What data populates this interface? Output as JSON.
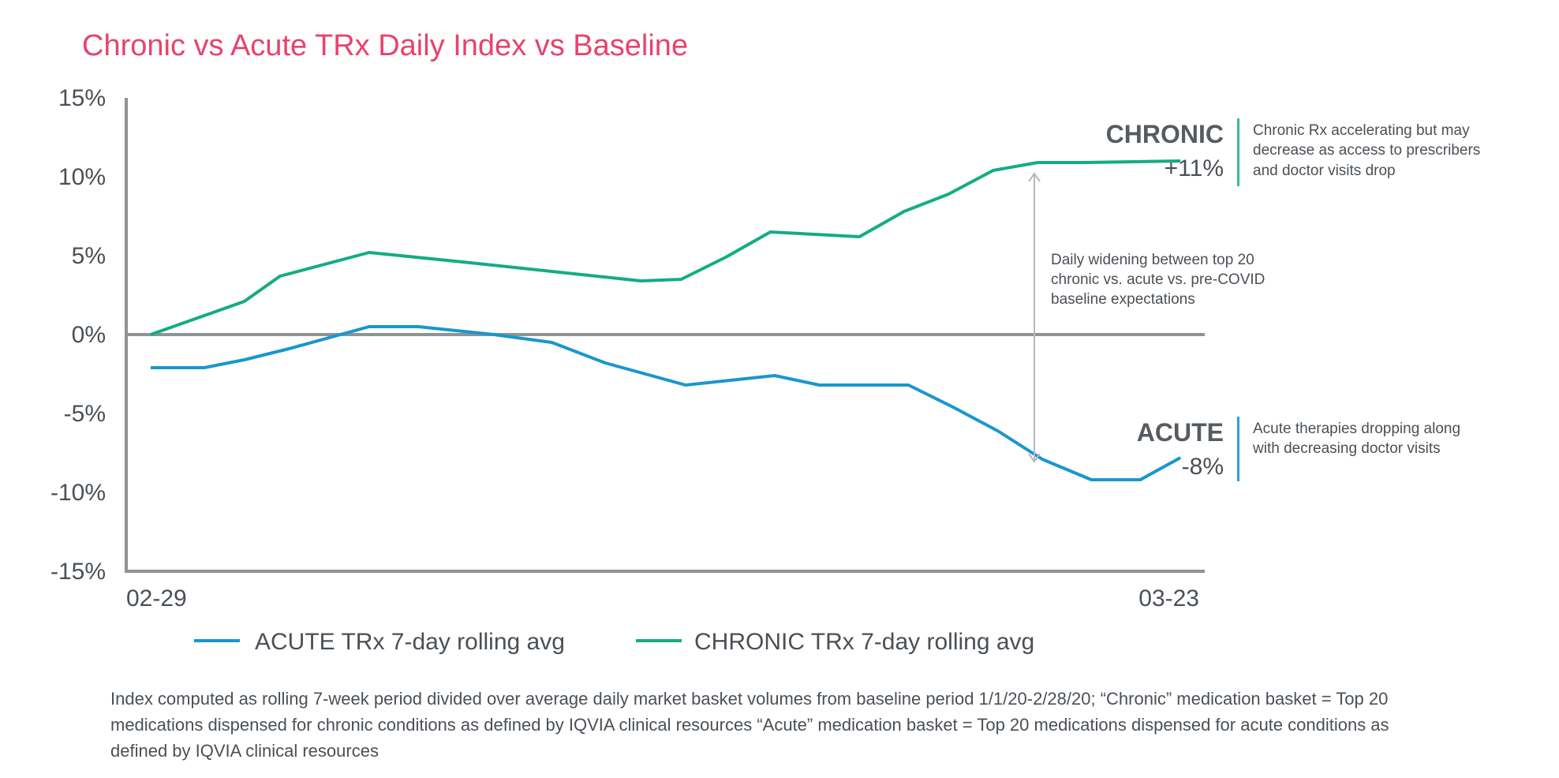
{
  "chart_data": {
    "type": "line",
    "title": "Chronic vs Acute TRx Daily Index vs Baseline",
    "xlabel": "",
    "ylabel": "",
    "x_tick_labels": [
      "02-29",
      "03-23"
    ],
    "ylim": [
      -15,
      15
    ],
    "y_ticks": [
      15,
      10,
      5,
      0,
      -5,
      -10,
      -15
    ],
    "y_tick_labels": [
      "15%",
      "10%",
      "5%",
      "0%",
      "-5%",
      "-10%",
      "-15%"
    ],
    "baseline": 0,
    "legend_position": "bottom",
    "series": [
      {
        "name": "ACUTE TRx 7-day rolling avg",
        "color": "#1a96cf",
        "x": [
          0,
          1.2,
          2.1,
          3.1,
          4.9,
          6.0,
          7.7,
          9.0,
          10.2,
          12.0,
          13.0,
          14.0,
          15.0,
          16.0,
          17.0,
          18.0,
          19.0,
          20.0,
          21.1,
          22.2,
          23.1
        ],
        "values": [
          -2.1,
          -2.1,
          -1.6,
          -0.9,
          0.5,
          0.5,
          0.0,
          -0.5,
          -1.8,
          -3.2,
          -2.9,
          -2.6,
          -3.2,
          -3.2,
          -3.2,
          -4.6,
          -6.1,
          -7.9,
          -9.2,
          -9.2,
          -7.8
        ]
      },
      {
        "name": "CHRONIC TRx 7-day rolling avg",
        "color": "#14ac84",
        "x": [
          0,
          1.0,
          2.1,
          2.9,
          4.9,
          7.0,
          9.0,
          11.0,
          11.9,
          12.9,
          13.9,
          15.9,
          16.9,
          17.9,
          18.9,
          19.9,
          20.9,
          23.1
        ],
        "values": [
          0,
          1.0,
          2.1,
          3.7,
          5.2,
          4.6,
          4.0,
          3.4,
          3.5,
          4.9,
          6.5,
          6.2,
          7.8,
          8.9,
          10.4,
          10.9,
          10.9,
          11.0
        ]
      }
    ],
    "annotations": {
      "chronic_label": "CHRONIC",
      "chronic_value": "+11%",
      "chronic_note": [
        "Chronic Rx accelerating but may",
        "decrease as access to prescribers",
        "and doctor visits drop"
      ],
      "acute_label": "ACUTE",
      "acute_value": "-8%",
      "acute_note": [
        "Acute therapies dropping along",
        "with decreasing doctor visits"
      ],
      "widening_note": [
        "Daily widening between top 20",
        "chronic vs. acute vs. pre-COVID",
        "baseline expectations"
      ]
    },
    "footnote": [
      "Index computed as rolling 7-week period divided over average daily market basket volumes from baseline period 1/1/20-2/28/20; “Chronic” medication basket = Top 20",
      "medications dispensed for chronic conditions as defined by IQVIA clinical resources “Acute” medication basket = Top 20 medications dispensed for acute conditions as",
      "defined by IQVIA clinical resources"
    ],
    "colors": {
      "title": "#e8426f",
      "axis": "#8e9396",
      "text": "#4a5056",
      "label_dark": "#555b60",
      "arrow": "#b4b8bb",
      "chronic_bar": "#3ebc96",
      "acute_bar": "#2ba3d8"
    }
  }
}
